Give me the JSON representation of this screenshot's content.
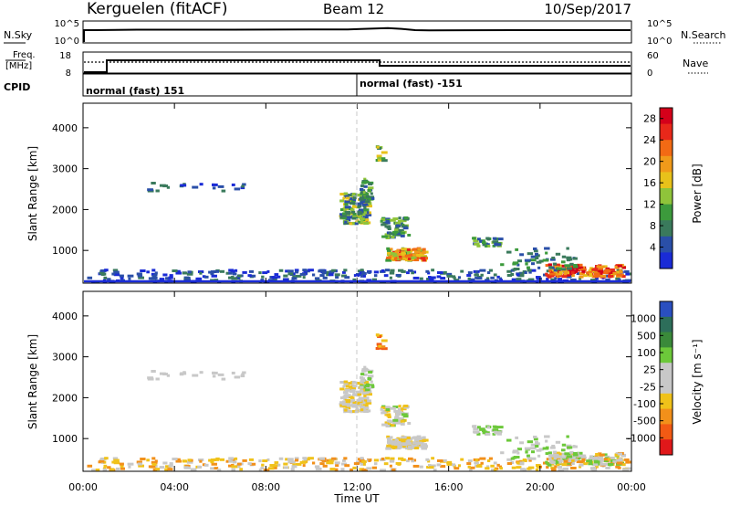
{
  "header": {
    "station": "Kerguelen (fitACF)",
    "beam": "Beam 12",
    "date": "10/Sep/2017"
  },
  "noise_panel": {
    "left_label": "N.Sky",
    "left_ticks": [
      "10^5",
      "10^0"
    ],
    "right_ticks": [
      "10^5",
      "10^0"
    ],
    "right_label": "N.Search"
  },
  "freq_panel": {
    "left_label": "Freq.",
    "left_unit": "[MHz]",
    "left_ticks": [
      "18",
      "8"
    ],
    "right_ticks": [
      "60",
      "0"
    ],
    "right_label": "Nave"
  },
  "cpid_panel": {
    "label": "CPID",
    "modes": [
      "normal (fast) 151",
      "normal (fast) -151"
    ]
  },
  "colors": {
    "power": [
      "#1a2bd6",
      "#2a4fa8",
      "#3a7a5c",
      "#3c9a3c",
      "#8fc43a",
      "#e8c21a",
      "#f09a1a",
      "#f26a14",
      "#e8281a",
      "#d4001a"
    ],
    "velocity": [
      "#2a4fc0",
      "#2d6e5a",
      "#3a8a3a",
      "#6cc83a",
      "#c8c8c8",
      "#c8c8c8",
      "#f0c21a",
      "#f2901a",
      "#f25a14",
      "#e0181a"
    ]
  },
  "chart_data": [
    {
      "type": "heatmap",
      "title": "",
      "xlabel": "Time UT",
      "ylabel": "Slant Range [km]",
      "x_ticks": [
        "00:00",
        "04:00",
        "08:00",
        "12:00",
        "16:00",
        "20:00",
        "00:00"
      ],
      "y_ticks": [
        "1000",
        "2000",
        "3000",
        "4000"
      ],
      "xlim": [
        0,
        24
      ],
      "ylim": [
        200,
        4600
      ],
      "colorbar_label": "Power [dB]",
      "colorbar_ticks": [
        "4",
        "8",
        "12",
        "16",
        "20",
        "24",
        "28"
      ],
      "colorbar_range": [
        0,
        30
      ]
    },
    {
      "type": "heatmap",
      "title": "",
      "xlabel": "Time UT",
      "ylabel": "Slant Range [km]",
      "x_ticks": [
        "00:00",
        "04:00",
        "08:00",
        "12:00",
        "16:00",
        "20:00",
        "00:00"
      ],
      "y_ticks": [
        "1000",
        "2000",
        "3000",
        "4000"
      ],
      "xlim": [
        0,
        24
      ],
      "ylim": [
        200,
        4600
      ],
      "colorbar_label": "Velocity [m s⁻¹]",
      "colorbar_ticks": [
        "1000",
        "500",
        "100",
        "25",
        "-25",
        "-100",
        "-500",
        "-1000"
      ]
    }
  ]
}
